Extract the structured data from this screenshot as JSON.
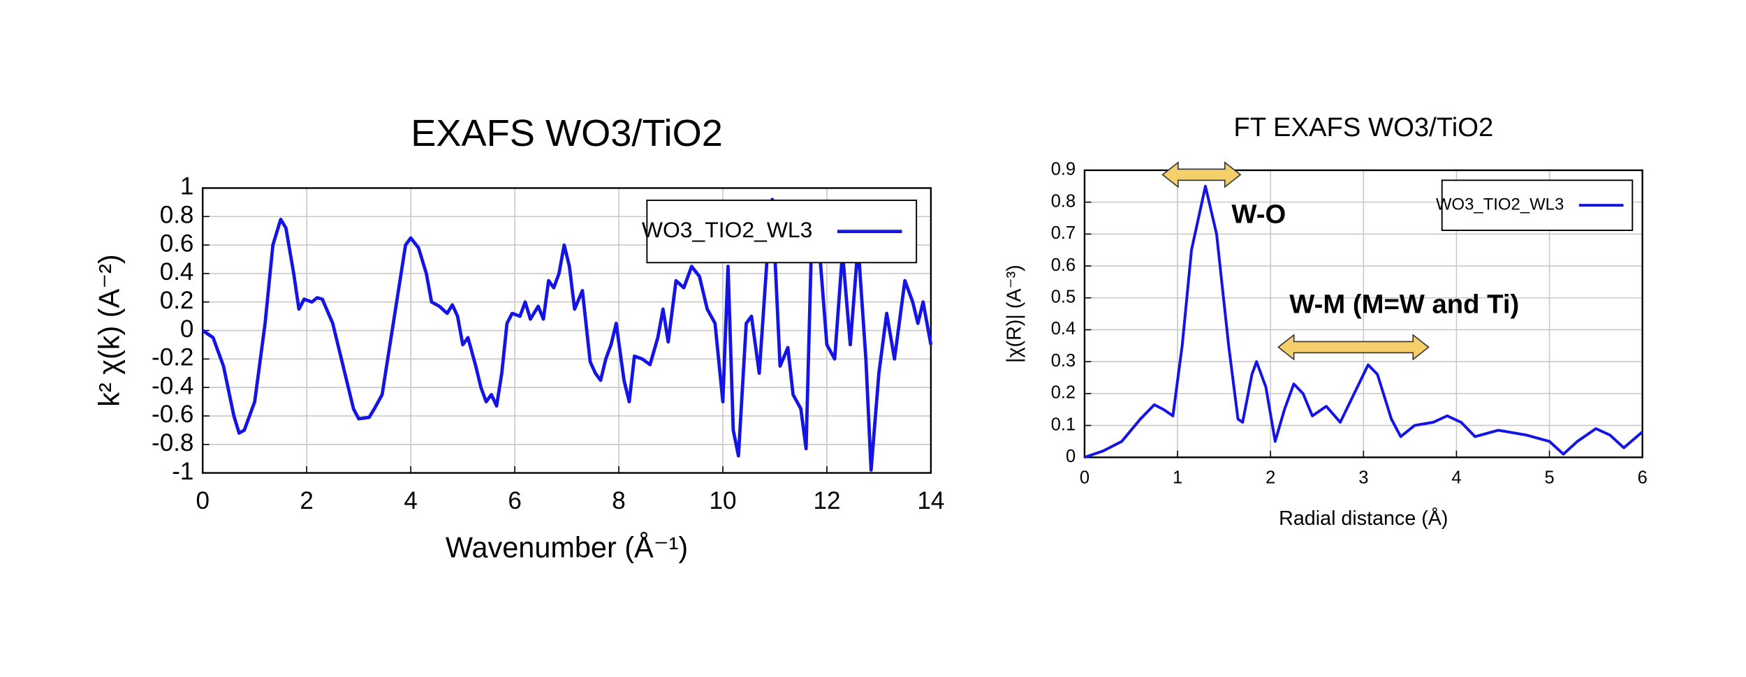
{
  "chart_data": [
    {
      "type": "line",
      "title": "EXAFS WO3/TiO2",
      "xlabel": "Wavenumber    (Å⁻¹)",
      "ylabel": "k² χ(k)    (A⁻²)",
      "x": [
        0,
        0.2,
        0.4,
        0.6,
        0.7,
        0.8,
        1.0,
        1.2,
        1.35,
        1.5,
        1.6,
        1.75,
        1.85,
        1.95,
        2.1,
        2.2,
        2.3,
        2.5,
        2.7,
        2.9,
        3.0,
        3.2,
        3.3,
        3.45,
        3.6,
        3.75,
        3.9,
        4.0,
        4.15,
        4.3,
        4.4,
        4.55,
        4.7,
        4.8,
        4.9,
        5.0,
        5.1,
        5.25,
        5.35,
        5.45,
        5.55,
        5.65,
        5.75,
        5.85,
        5.95,
        6.1,
        6.2,
        6.3,
        6.45,
        6.55,
        6.65,
        6.75,
        6.85,
        6.95,
        7.05,
        7.15,
        7.3,
        7.45,
        7.55,
        7.65,
        7.75,
        7.85,
        7.95,
        8.1,
        8.2,
        8.3,
        8.45,
        8.6,
        8.75,
        8.85,
        8.95,
        9.1,
        9.25,
        9.4,
        9.55,
        9.7,
        9.85,
        10.0,
        10.1,
        10.2,
        10.3,
        10.45,
        10.55,
        10.7,
        10.85,
        10.95,
        11.1,
        11.25,
        11.35,
        11.5,
        11.6,
        11.7,
        11.85,
        12.0,
        12.15,
        12.3,
        12.45,
        12.6,
        12.75,
        12.85,
        13.0,
        13.15,
        13.3,
        13.5,
        13.65,
        13.75,
        13.85,
        14.0
      ],
      "series": [
        {
          "name": "WO3_TIO2_WL3",
          "color": "#1414e6",
          "values": [
            0,
            -0.05,
            -0.25,
            -0.6,
            -0.72,
            -0.7,
            -0.5,
            0.05,
            0.6,
            0.78,
            0.72,
            0.4,
            0.15,
            0.22,
            0.2,
            0.23,
            0.22,
            0.05,
            -0.25,
            -0.55,
            -0.62,
            -0.61,
            -0.55,
            -0.45,
            -0.1,
            0.25,
            0.6,
            0.65,
            0.58,
            0.4,
            0.2,
            0.17,
            0.12,
            0.18,
            0.1,
            -0.1,
            -0.05,
            -0.25,
            -0.4,
            -0.5,
            -0.45,
            -0.53,
            -0.3,
            0.05,
            0.12,
            0.1,
            0.2,
            0.08,
            0.17,
            0.08,
            0.35,
            0.3,
            0.4,
            0.6,
            0.45,
            0.15,
            0.28,
            -0.22,
            -0.3,
            -0.35,
            -0.2,
            -0.1,
            0.05,
            -0.35,
            -0.5,
            -0.18,
            -0.2,
            -0.24,
            -0.05,
            0.15,
            -0.08,
            0.35,
            0.3,
            0.45,
            0.38,
            0.15,
            0.05,
            -0.5,
            0.45,
            -0.7,
            -0.88,
            0.05,
            0.1,
            -0.3,
            0.5,
            0.92,
            -0.25,
            -0.12,
            -0.45,
            -0.55,
            -0.83,
            0.55,
            0.6,
            -0.1,
            -0.2,
            0.55,
            -0.1,
            0.6,
            -0.2,
            -0.98,
            -0.3,
            0.12,
            -0.2,
            0.35,
            0.2,
            0.05,
            0.2,
            -0.1
          ]
        }
      ],
      "xlim": [
        0,
        14
      ],
      "xticks": [
        0,
        2,
        4,
        6,
        8,
        10,
        12,
        14
      ],
      "ylim": [
        -1,
        1
      ],
      "yticks": [
        -1,
        -0.8,
        -0.6,
        -0.4,
        -0.2,
        0,
        0.2,
        0.4,
        0.6,
        0.8,
        1
      ],
      "grid": true,
      "legend": "upper right"
    },
    {
      "type": "line",
      "title": "FT EXAFS WO3/TiO2",
      "xlabel": "Radial distance    (Å)",
      "ylabel": "|χ(R)|    (A⁻³)",
      "annotations": [
        "W-O",
        "W-M (M=W and Ti)"
      ],
      "x": [
        0,
        0.2,
        0.4,
        0.6,
        0.75,
        0.85,
        0.95,
        1.05,
        1.15,
        1.3,
        1.42,
        1.55,
        1.65,
        1.7,
        1.8,
        1.85,
        1.95,
        2.05,
        2.15,
        2.25,
        2.35,
        2.45,
        2.6,
        2.75,
        2.9,
        3.05,
        3.15,
        3.3,
        3.4,
        3.55,
        3.75,
        3.9,
        4.05,
        4.2,
        4.45,
        4.75,
        5.0,
        5.15,
        5.3,
        5.5,
        5.65,
        5.8,
        6.0
      ],
      "series": [
        {
          "name": "WO3_TIO2_WL3",
          "color": "#1414e6",
          "values": [
            0,
            0.02,
            0.05,
            0.12,
            0.165,
            0.15,
            0.13,
            0.35,
            0.65,
            0.85,
            0.7,
            0.35,
            0.12,
            0.11,
            0.26,
            0.3,
            0.22,
            0.05,
            0.15,
            0.23,
            0.2,
            0.13,
            0.16,
            0.11,
            0.2,
            0.29,
            0.26,
            0.12,
            0.065,
            0.1,
            0.11,
            0.13,
            0.11,
            0.065,
            0.085,
            0.07,
            0.05,
            0.01,
            0.05,
            0.09,
            0.07,
            0.03,
            0.08
          ]
        }
      ],
      "xlim": [
        0,
        6
      ],
      "xticks": [
        0,
        1,
        2,
        3,
        4,
        5,
        6
      ],
      "ylim": [
        0,
        0.9
      ],
      "yticks": [
        0,
        0.1,
        0.2,
        0.3,
        0.4,
        0.5,
        0.6,
        0.7,
        0.8,
        0.9
      ],
      "grid": true,
      "legend": "upper right"
    }
  ]
}
